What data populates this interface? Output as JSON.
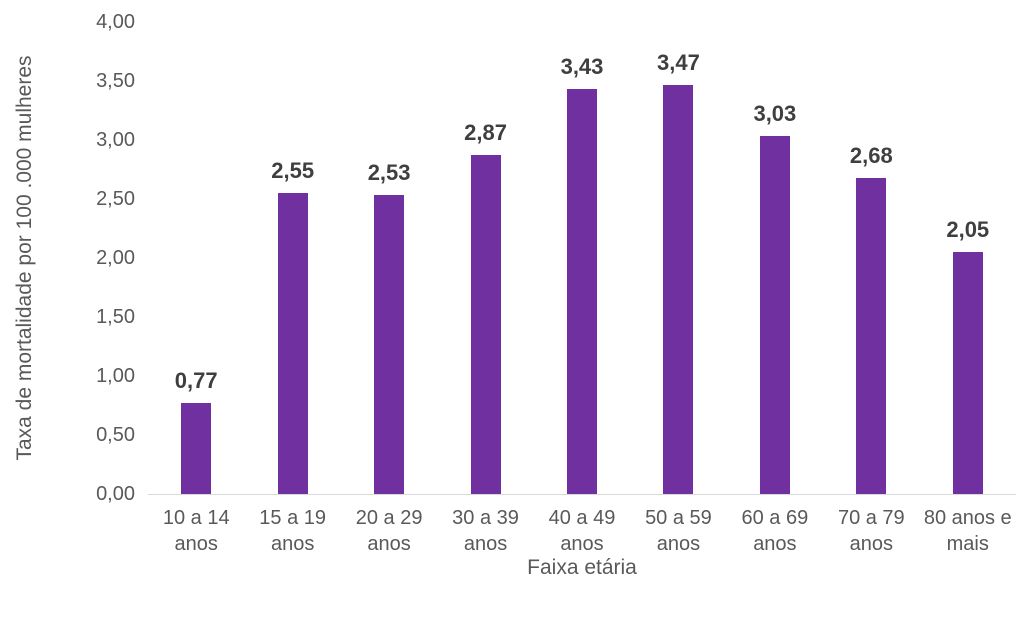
{
  "chart_data": {
    "type": "bar",
    "title": "",
    "xlabel": "Faixa etária",
    "ylabel": "Taxa de mortalidade por 100 .000 mulheres",
    "categories": [
      "10 a 14 anos",
      "15 a 19 anos",
      "20 a 29 anos",
      "30 a 39 anos",
      "40 a 49 anos",
      "50 a 59 anos",
      "60 a 69 anos",
      "70 a 79 anos",
      "80 anos e mais"
    ],
    "category_lines": [
      [
        "10 a 14",
        "anos"
      ],
      [
        "15 a 19",
        "anos"
      ],
      [
        "20 a 29",
        "anos"
      ],
      [
        "30 a 39",
        "anos"
      ],
      [
        "40 a 49",
        "anos"
      ],
      [
        "50 a 59",
        "anos"
      ],
      [
        "60 a 69",
        "anos"
      ],
      [
        "70 a 79",
        "anos"
      ],
      [
        "80 anos e",
        "mais"
      ]
    ],
    "values": [
      0.77,
      2.55,
      2.53,
      2.87,
      3.43,
      3.47,
      3.03,
      2.68,
      2.05
    ],
    "value_labels": [
      "0,77",
      "2,55",
      "2,53",
      "2,87",
      "3,43",
      "3,47",
      "3,03",
      "2,68",
      "2,05"
    ],
    "ylim": [
      0,
      4
    ],
    "ytick_step": 0.5,
    "ytick_labels": [
      "0,00",
      "0,50",
      "1,00",
      "1,50",
      "2,00",
      "2,50",
      "3,00",
      "3,50",
      "4,00"
    ],
    "grid": false,
    "legend": null,
    "colors": {
      "bar": "#7030a0",
      "axis_line": "#d9d9d9",
      "tick_text": "#595959",
      "data_label": "#3f3f3f"
    }
  }
}
